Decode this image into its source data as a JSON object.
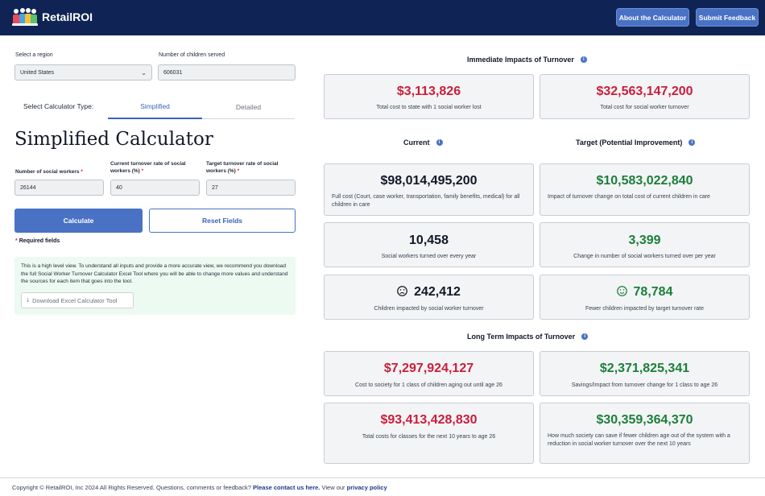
{
  "header": {
    "brand": "RetailROI",
    "about_label": "About the Calculator",
    "feedback_label": "Submit Feedback"
  },
  "form": {
    "region_label": "Select a region",
    "region_value": "United States",
    "children_label": "Number of children served",
    "children_value": "606031",
    "calc_type_label": "Select Calculator Type:",
    "tab_simplified": "Simplified",
    "tab_detailed": "Detailed",
    "title": "Simplified Calculator",
    "workers_label": "Number of social workers",
    "workers_value": "26144",
    "current_rate_label": "Current turnover rate of social workers (%)",
    "current_rate_value": "40",
    "target_rate_label": "Target turnover rate of social workers (%)",
    "target_rate_value": "27",
    "required_mark": "*",
    "calculate_label": "Calculate",
    "reset_label": "Reset Fields",
    "required_note": "Required fields",
    "info_text": "This is a high level view. To understand all inputs and provide a more accurate view, we recommend you download the full Social Worker Turnover Calculator Excel Tool where you will be able to change more values and understand the sources for each item that goes into the tool.",
    "download_label": "Download Excel Calculator Tool"
  },
  "immediate": {
    "title": "Immediate Impacts of Turnover",
    "cards": [
      {
        "value": "$3,113,826",
        "desc": "Total cost to state with 1 social worker lost"
      },
      {
        "value": "$32,563,147,200",
        "desc": "Total cost for social worker turnover"
      }
    ]
  },
  "current": {
    "title": "Current",
    "cards": [
      {
        "value": "$98,014,495,200",
        "desc": "Full cost (Court, case worker, transportation, family benefits, medical) for all children in care"
      },
      {
        "value": "10,458",
        "desc": "Social workers turned over every year"
      },
      {
        "value": "242,412",
        "desc": "Children impacted by social worker turnover",
        "icon": "frown-face-icon"
      }
    ]
  },
  "target": {
    "title": "Target (Potential Improvement)",
    "cards": [
      {
        "value": "$10,583,022,840",
        "desc": "Impact of turnover change on total cost of current children in care"
      },
      {
        "value": "3,399",
        "desc": "Change in number of social workers turned over per year"
      },
      {
        "value": "78,784",
        "desc": "Fewer children impacted by target turnover rate",
        "icon": "smile-face-icon"
      }
    ]
  },
  "long_term": {
    "title": "Long Term Impacts of Turnover",
    "cards": [
      {
        "value": "$7,297,924,127",
        "desc": "Cost to society for 1 class of children aging out until age 26"
      },
      {
        "value": "$2,371,825,341",
        "desc": "Savings/Impact from turnover change for 1 class to age 26"
      },
      {
        "value": "$93,413,428,830",
        "desc": "Total costs for classes for the next 10 years to age 26"
      },
      {
        "value": "$30,359,364,370",
        "desc": "How much society can save if fewer children age out of the system with a reduction in social worker turnover over the next 10 years"
      }
    ]
  },
  "footer": {
    "text_before": "Copyright © RetailROI, Inc 2024 All Rights Reserved. Questions, comments or feedback?",
    "contact_link": "Please contact us here.",
    "text_middle": "View our",
    "privacy_link": "privacy policy"
  },
  "colors": {
    "header_bg": "#0f2454",
    "accent": "#4a72c4",
    "negative": "#c81e3c",
    "positive": "#1b7f3a",
    "info_bg": "#ecfaf1"
  }
}
